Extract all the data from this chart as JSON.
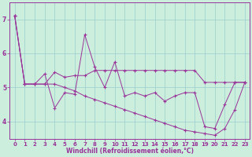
{
  "xlabel": "Windchill (Refroidissement éolien,°C)",
  "x": [
    0,
    1,
    2,
    3,
    4,
    5,
    6,
    7,
    8,
    9,
    10,
    11,
    12,
    13,
    14,
    15,
    16,
    17,
    18,
    19,
    20,
    21,
    22,
    23
  ],
  "line_jagged": [
    7.1,
    5.1,
    5.1,
    5.4,
    4.4,
    4.85,
    4.8,
    6.55,
    5.6,
    5.0,
    5.75,
    4.75,
    4.85,
    4.75,
    4.85,
    4.6,
    4.75,
    4.85,
    4.85,
    3.85,
    3.8,
    4.5,
    5.15,
    5.15
  ],
  "line_flat": [
    7.1,
    5.1,
    5.1,
    5.1,
    5.45,
    5.3,
    5.35,
    5.35,
    5.5,
    5.5,
    5.5,
    5.5,
    5.5,
    5.5,
    5.5,
    5.5,
    5.5,
    5.5,
    5.5,
    5.15,
    5.15,
    5.15,
    5.15,
    5.15
  ],
  "line_diag": [
    7.1,
    5.1,
    5.1,
    5.1,
    5.1,
    5.0,
    4.9,
    4.75,
    4.65,
    4.55,
    4.45,
    4.35,
    4.25,
    4.15,
    4.05,
    3.95,
    3.85,
    3.75,
    3.7,
    3.65,
    3.6,
    3.8,
    4.35,
    5.15
  ],
  "bg_color": "#cceedd",
  "line_color": "#993399",
  "grid_color": "#99cccc",
  "ylim": [
    3.5,
    7.5
  ],
  "yticks": [
    4,
    5,
    6,
    7
  ],
  "xticks": [
    0,
    1,
    2,
    3,
    4,
    5,
    6,
    7,
    8,
    9,
    10,
    11,
    12,
    13,
    14,
    15,
    16,
    17,
    18,
    19,
    20,
    21,
    22,
    23
  ]
}
